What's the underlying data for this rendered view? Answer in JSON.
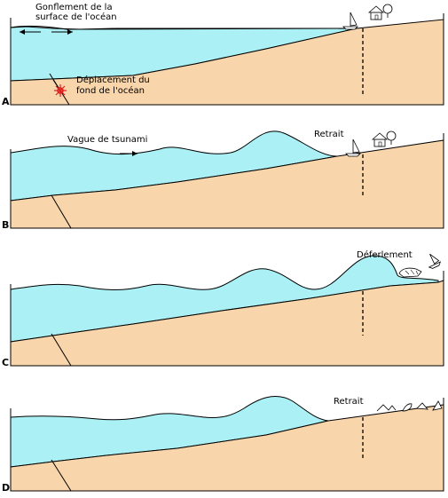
{
  "panels": [
    {
      "letter": "A",
      "labels": {
        "surface_line1": "Gonflement de la",
        "surface_line2": "surface de l'océan",
        "seafloor_line1": "Déplacement du",
        "seafloor_line2": "fond de l'océan"
      }
    },
    {
      "letter": "B",
      "labels": {
        "wave": "Vague de tsunami",
        "retreat": "Retrait"
      }
    },
    {
      "letter": "C",
      "labels": {
        "breaking": "Déferlement"
      }
    },
    {
      "letter": "D",
      "labels": {
        "retreat": "Retrait"
      }
    }
  ],
  "colors": {
    "water": "#aaf0f4",
    "land": "#f8d5aa",
    "burst": "#e02020"
  },
  "icons": [
    "sailboat-icon",
    "house-icon",
    "tree-icon",
    "debris-icon",
    "earthquake-burst-icon"
  ]
}
